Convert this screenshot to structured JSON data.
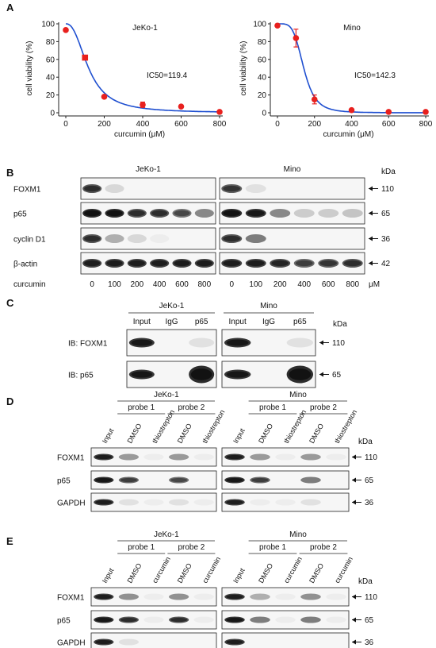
{
  "panels": {
    "A": "A",
    "B": "B",
    "C": "C",
    "D": "D",
    "E": "E"
  },
  "chart_data": [
    {
      "type": "scatter",
      "title": "JeKo-1",
      "xlabel": "curcumin (μM)",
      "ylabel": "cell viability (%)",
      "annotation": "IC50=119.4",
      "xticks": [
        "0",
        "200",
        "400",
        "600",
        "800"
      ],
      "yticks": [
        "0",
        "20",
        "40",
        "60",
        "80",
        "100"
      ],
      "xlim": [
        0,
        800
      ],
      "ylim": [
        0,
        100
      ],
      "points": [
        {
          "x": 0,
          "y": 93,
          "err": 0
        },
        {
          "x": 100,
          "y": 62,
          "err": 2
        },
        {
          "x": 200,
          "y": 18,
          "err": 1
        },
        {
          "x": 400,
          "y": 9,
          "err": 3
        },
        {
          "x": 600,
          "y": 7,
          "err": 1
        },
        {
          "x": 800,
          "y": 1,
          "err": 0
        }
      ],
      "ic50": 119.4,
      "hill": 2.4,
      "color": "#e8201e",
      "curve_color": "#1f4fd0"
    },
    {
      "type": "scatter",
      "title": "Mino",
      "xlabel": "curcumin (μM)",
      "ylabel": "cell viability (%)",
      "annotation": "IC50=142.3",
      "xticks": [
        "0",
        "200",
        "400",
        "600",
        "800"
      ],
      "yticks": [
        "0",
        "20",
        "40",
        "60",
        "80",
        "100"
      ],
      "xlim": [
        0,
        800
      ],
      "ylim": [
        0,
        100
      ],
      "points": [
        {
          "x": 0,
          "y": 98,
          "err": 1
        },
        {
          "x": 100,
          "y": 84,
          "err": 10
        },
        {
          "x": 200,
          "y": 15,
          "err": 5
        },
        {
          "x": 400,
          "y": 3,
          "err": 1
        },
        {
          "x": 600,
          "y": 1,
          "err": 0
        },
        {
          "x": 800,
          "y": 1,
          "err": 0
        }
      ],
      "ic50": 142.3,
      "hill": 4.5,
      "color": "#e8201e",
      "curve_color": "#1f4fd0"
    }
  ],
  "panel_b": {
    "titles": [
      "JeKo-1",
      "Mino"
    ],
    "unit": "kDa",
    "rows": [
      {
        "label": "FOXM1",
        "kda": "110"
      },
      {
        "label": "p65",
        "kda": "65"
      },
      {
        "label": "cyclin D1",
        "kda": "36"
      },
      {
        "label": "β-actin",
        "kda": "42"
      }
    ],
    "xaxis_label": "curcumin",
    "doses": [
      "0",
      "100",
      "200",
      "400",
      "600",
      "800"
    ],
    "dose_unit": "μM",
    "bands": [
      [
        [
          0.8,
          0.15,
          0,
          0,
          0,
          0
        ],
        [
          0.75,
          0.1,
          0,
          0,
          0,
          0
        ]
      ],
      [
        [
          1,
          1,
          0.8,
          0.8,
          0.65,
          0.55
        ],
        [
          1,
          0.95,
          0.55,
          0.2,
          0.2,
          0.25
        ]
      ],
      [
        [
          0.8,
          0.35,
          0.15,
          0.05,
          0,
          0
        ],
        [
          0.8,
          0.6,
          0,
          0,
          0,
          0
        ]
      ],
      [
        [
          0.9,
          0.9,
          0.9,
          0.9,
          0.9,
          0.9
        ],
        [
          0.9,
          0.9,
          0.85,
          0.7,
          0.75,
          0.8
        ]
      ]
    ]
  },
  "panel_c": {
    "titles": [
      "JeKo-1",
      "Mino"
    ],
    "lanes": [
      "Input",
      "IgG",
      "p65"
    ],
    "unit": "kDa",
    "rows": [
      {
        "label": "IB: FOXM1",
        "kda": "110"
      },
      {
        "label": "IB: p65",
        "kda": "65"
      }
    ],
    "bands": [
      [
        [
          0.95,
          0,
          0.1
        ],
        [
          0.95,
          0,
          0.1
        ]
      ],
      [
        [
          0.95,
          0,
          1
        ],
        [
          0.95,
          0,
          1
        ]
      ]
    ]
  },
  "panel_d": {
    "titles": [
      "JeKo-1",
      "Mino"
    ],
    "probes": [
      "probe 1",
      "probe 2"
    ],
    "lanes": [
      "Input",
      "DMSO",
      "thiostrepton",
      "DMSO",
      "thiostrepton"
    ],
    "unit": "kDa",
    "rows": [
      {
        "label": "FOXM1",
        "kda": "110"
      },
      {
        "label": "p65",
        "kda": "65"
      },
      {
        "label": "GAPDH",
        "kda": "36"
      }
    ],
    "bands": [
      [
        [
          0.9,
          0.45,
          0.05,
          0.45,
          0.05
        ],
        [
          0.9,
          0.45,
          0.05,
          0.45,
          0.05
        ]
      ],
      [
        [
          0.95,
          0.7,
          0,
          0.65,
          0
        ],
        [
          0.95,
          0.7,
          0,
          0.6,
          0
        ]
      ],
      [
        [
          0.9,
          0.1,
          0.05,
          0.1,
          0.05
        ],
        [
          0.9,
          0.05,
          0.05,
          0.1,
          0
        ]
      ]
    ]
  },
  "panel_e": {
    "titles": [
      "JeKo-1",
      "Mino"
    ],
    "probes": [
      "probe 1",
      "probe 2"
    ],
    "lanes": [
      "Input",
      "DMSO",
      "curcumin",
      "DMSO",
      "curcumin"
    ],
    "unit": "kDa",
    "rows": [
      {
        "label": "FOXM1",
        "kda": "110"
      },
      {
        "label": "p65",
        "kda": "65"
      },
      {
        "label": "GAPDH",
        "kda": "36"
      }
    ],
    "bands": [
      [
        [
          0.9,
          0.5,
          0.05,
          0.5,
          0.05
        ],
        [
          0.9,
          0.35,
          0.05,
          0.5,
          0.05
        ]
      ],
      [
        [
          0.95,
          0.8,
          0.05,
          0.8,
          0.05
        ],
        [
          0.95,
          0.6,
          0.05,
          0.6,
          0.05
        ]
      ],
      [
        [
          0.9,
          0.1,
          0,
          0,
          0
        ],
        [
          0.9,
          0,
          0,
          0,
          0
        ]
      ]
    ]
  }
}
